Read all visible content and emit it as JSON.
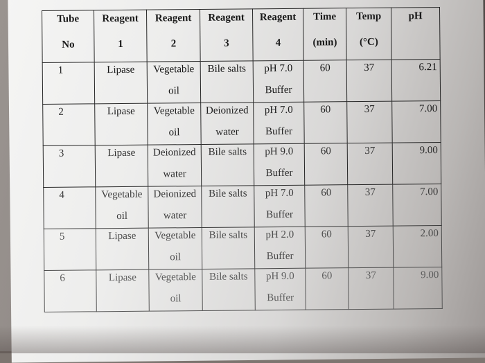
{
  "table": {
    "headers": [
      {
        "line1": "Tube",
        "line2": "No"
      },
      {
        "line1": "Reagent",
        "line2": "1"
      },
      {
        "line1": "Reagent",
        "line2": "2"
      },
      {
        "line1": "Reagent",
        "line2": "3"
      },
      {
        "line1": "Reagent",
        "line2": "4"
      },
      {
        "line1": "Time",
        "line2": "(min)"
      },
      {
        "line1": "Temp",
        "line2": "(°C)"
      },
      {
        "line1": "pH",
        "line2": ""
      }
    ],
    "rows": [
      {
        "tube": "1",
        "r1": [
          "Lipase",
          ""
        ],
        "r2": [
          "Vegetable",
          "oil"
        ],
        "r3": [
          "Bile salts",
          ""
        ],
        "r4": [
          "pH 7.0",
          "Buffer"
        ],
        "time": "60",
        "temp": "37",
        "ph": "6.21"
      },
      {
        "tube": "2",
        "r1": [
          "Lipase",
          ""
        ],
        "r2": [
          "Vegetable",
          "oil"
        ],
        "r3": [
          "Deionized",
          "water"
        ],
        "r4": [
          "pH 7.0",
          "Buffer"
        ],
        "time": "60",
        "temp": "37",
        "ph": "7.00"
      },
      {
        "tube": "3",
        "r1": [
          "Lipase",
          ""
        ],
        "r2": [
          "Deionized",
          "water"
        ],
        "r3": [
          "Bile salts",
          ""
        ],
        "r4": [
          "pH 9.0",
          "Buffer"
        ],
        "time": "60",
        "temp": "37",
        "ph": "9.00"
      },
      {
        "tube": "4",
        "r1": [
          "Vegetable",
          "oil"
        ],
        "r2": [
          "Deionized",
          "water"
        ],
        "r3": [
          "Bile salts",
          ""
        ],
        "r4": [
          "pH 7.0",
          "Buffer"
        ],
        "time": "60",
        "temp": "37",
        "ph": "7.00"
      },
      {
        "tube": "5",
        "r1": [
          "Lipase",
          ""
        ],
        "r2": [
          "Vegetable",
          "oil"
        ],
        "r3": [
          "Bile salts",
          ""
        ],
        "r4": [
          "pH 2.0",
          "Buffer"
        ],
        "time": "60",
        "temp": "37",
        "ph": "2.00"
      },
      {
        "tube": "6",
        "r1": [
          "Lipase",
          ""
        ],
        "r2": [
          "Vegetable",
          "oil"
        ],
        "r3": [
          "Bile salts",
          ""
        ],
        "r4": [
          "pH 9.0",
          "Buffer"
        ],
        "time": "60",
        "temp": "37",
        "ph": "9.00"
      }
    ]
  }
}
